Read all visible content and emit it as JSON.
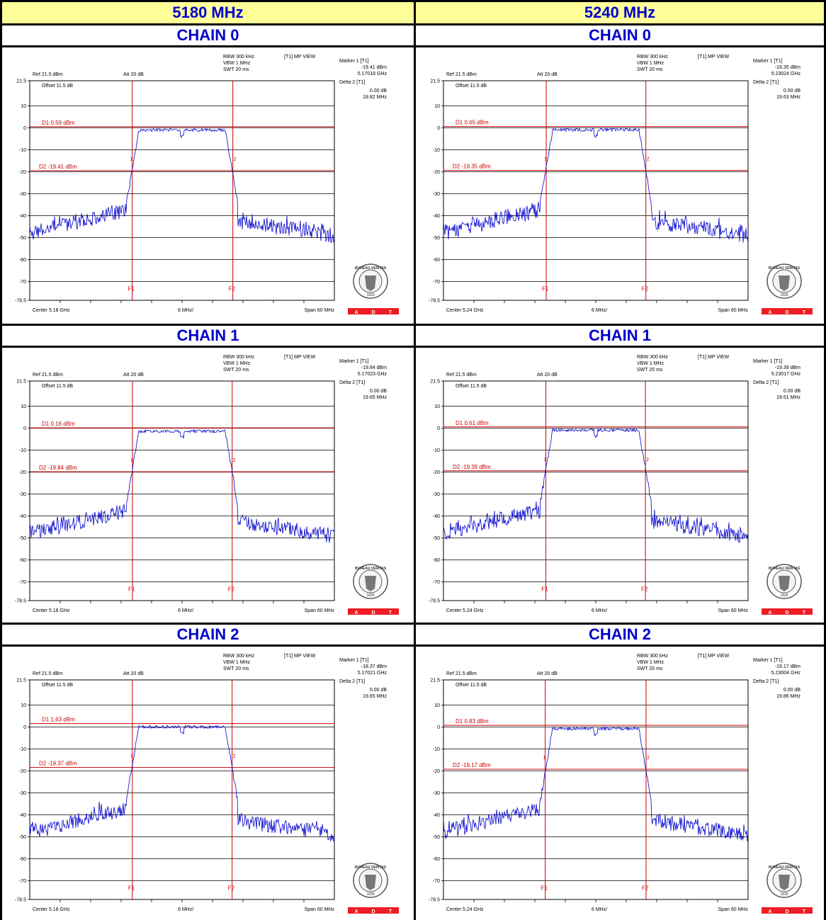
{
  "columns": [
    {
      "freq_label": "5180 MHz"
    },
    {
      "freq_label": "5240 MHz"
    }
  ],
  "chain_labels": [
    "CHAIN 0",
    "CHAIN 1",
    "CHAIN 2"
  ],
  "common": {
    "ref": "Ref 21.5 dBm",
    "att": "Att  20 dB",
    "offset": "Offset 11.5 dB",
    "rbw": "RBW 300 kHz",
    "vbw": "VBW 1 MHz",
    "swt": "SWT 20 ms",
    "view": "[T1] MP VIEW",
    "marker1": "Marker 1 [T1]",
    "delta2": "Delta 2 [T1]",
    "div": "6 MHz/",
    "span": "Span 60 MHz",
    "y_ticks": [
      "21.5",
      "10",
      "0",
      "-10",
      "-20",
      "-30",
      "-40",
      "-50",
      "-60",
      "-70",
      "-78.5"
    ],
    "logo_text": "BUREAU VERITAS",
    "logo_year": "1828",
    "adt": [
      "A",
      "D",
      "T"
    ],
    "f1": "F1",
    "f2": "F2",
    "m1": "1",
    "m2": "2",
    "colors": {
      "trace": "#0000cc",
      "marker": "#cc0000",
      "adt": "#ee1c24",
      "header_bg": "#ffff99",
      "header_fg": "#0000cc"
    }
  },
  "chart_data": [
    {
      "type": "line",
      "freq": "5180 MHz",
      "chain": "CHAIN 0",
      "center": "Center 5.18 GHz",
      "center_ghz": 5.18,
      "marker1_dbm": "-19.41 dBm",
      "marker1_freq": "5.17018 GHz",
      "delta_db": "0.00 dB",
      "delta_freq": "19.82 MHz",
      "d1_label": "D1 0.59 dBm",
      "d1_value": 0.59,
      "d2_label": "D2 -19.41 dBm",
      "d2_value": -19.41,
      "f1_mhz": 5170.18,
      "f2_mhz": 5190.0,
      "x_range_mhz": [
        5150,
        5210
      ],
      "ylim": [
        -78.5,
        21.5
      ]
    },
    {
      "type": "line",
      "freq": "5240 MHz",
      "chain": "CHAIN 0",
      "center": "Center 5.24 GHz",
      "center_ghz": 5.24,
      "marker1_dbm": "-19.35 dBm",
      "marker1_freq": "5.23024 GHz",
      "delta_db": "0.00 dB",
      "delta_freq": "19.63 MHz",
      "d1_label": "D1 0.65 dBm",
      "d1_value": 0.65,
      "d2_label": "D2 -19.35 dBm",
      "d2_value": -19.35,
      "f1_mhz": 5230.24,
      "f2_mhz": 5249.87,
      "x_range_mhz": [
        5210,
        5270
      ],
      "ylim": [
        -78.5,
        21.5
      ]
    },
    {
      "type": "line",
      "freq": "5180 MHz",
      "chain": "CHAIN 1",
      "center": "Center 5.18 GHz",
      "center_ghz": 5.18,
      "marker1_dbm": "-19.84 dBm",
      "marker1_freq": "5.17023 GHz",
      "delta_db": "0.00 dB",
      "delta_freq": "19.65 MHz",
      "d1_label": "D1 0.16 dBm",
      "d1_value": 0.16,
      "d2_label": "D2 -19.84 dBm",
      "d2_value": -19.84,
      "f1_mhz": 5170.23,
      "f2_mhz": 5189.88,
      "x_range_mhz": [
        5150,
        5210
      ],
      "ylim": [
        -78.5,
        21.5
      ]
    },
    {
      "type": "line",
      "freq": "5240 MHz",
      "chain": "CHAIN 1",
      "center": "Center 5.24 GHz",
      "center_ghz": 5.24,
      "marker1_dbm": "-19.39 dBm",
      "marker1_freq": "5.23017 GHz",
      "delta_db": "0.00 dB",
      "delta_freq": "19.61 MHz",
      "d1_label": "D1 0.61 dBm",
      "d1_value": 0.61,
      "d2_label": "D2 -19.39 dBm",
      "d2_value": -19.39,
      "f1_mhz": 5230.17,
      "f2_mhz": 5249.78,
      "x_range_mhz": [
        5210,
        5270
      ],
      "ylim": [
        -78.5,
        21.5
      ]
    },
    {
      "type": "line",
      "freq": "5180 MHz",
      "chain": "CHAIN 2",
      "center": "Center 5.18 GHz",
      "center_ghz": 5.18,
      "marker1_dbm": "-18.37 dBm",
      "marker1_freq": "5.17021 GHz",
      "delta_db": "0.00 dB",
      "delta_freq": "19.65 MHz",
      "d1_label": "D1 1.63 dBm",
      "d1_value": 1.63,
      "d2_label": "D2 -18.37 dBm",
      "d2_value": -18.37,
      "f1_mhz": 5170.21,
      "f2_mhz": 5189.86,
      "x_range_mhz": [
        5150,
        5210
      ],
      "ylim": [
        -78.5,
        21.5
      ]
    },
    {
      "type": "line",
      "freq": "5240 MHz",
      "chain": "CHAIN 2",
      "center": "Center 5.24 GHz",
      "center_ghz": 5.24,
      "marker1_dbm": "-19.17 dBm",
      "marker1_freq": "5.23004 GHz",
      "delta_db": "0.00 dB",
      "delta_freq": "19.86 MHz",
      "d1_label": "D1 0.83 dBm",
      "d1_value": 0.83,
      "d2_label": "D2 -19.17 dBm",
      "d2_value": -19.17,
      "f1_mhz": 5230.04,
      "f2_mhz": 5249.9,
      "x_range_mhz": [
        5210,
        5270
      ],
      "ylim": [
        -78.5,
        21.5
      ]
    }
  ]
}
